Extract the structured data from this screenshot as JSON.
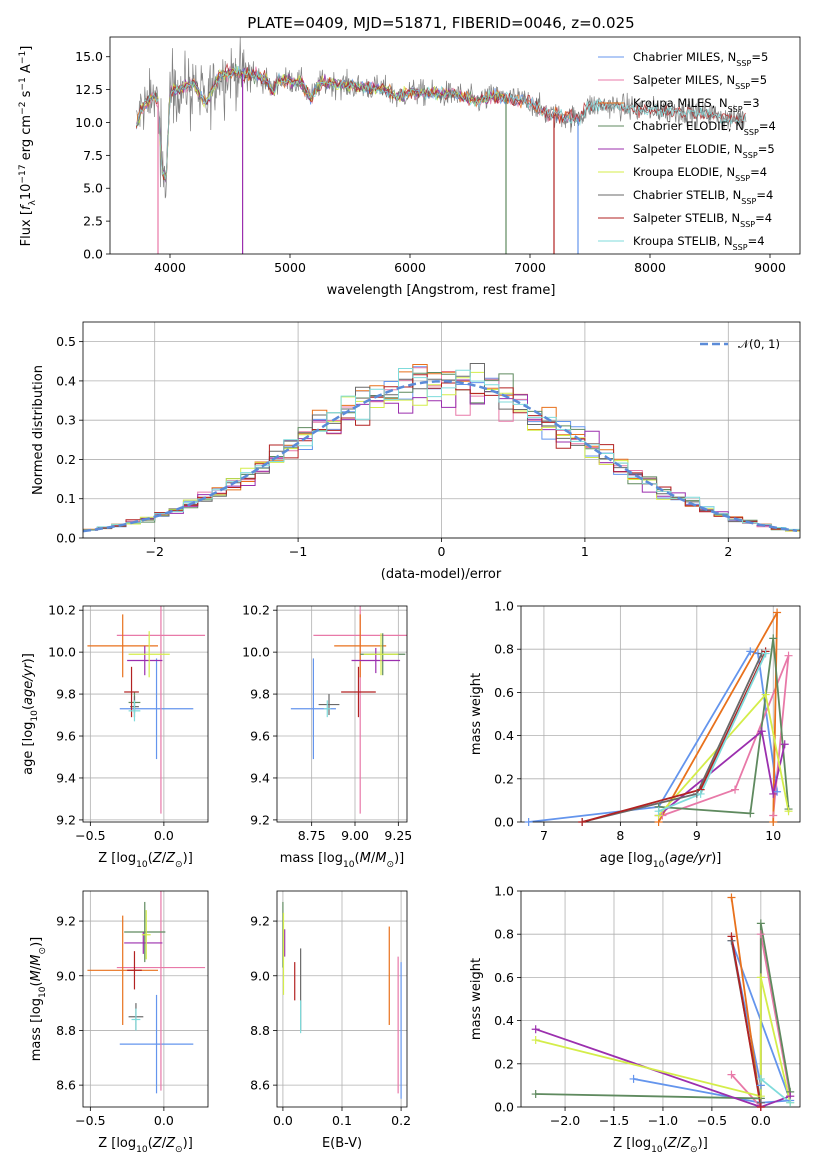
{
  "figure": {
    "title": "PLATE=0409, MJD=51871, FIBERID=0046, z=0.025",
    "colors": [
      "#6495ed",
      "#e879a8",
      "#e8711c",
      "#5f8a5f",
      "#9b2fae",
      "#d4ed4a",
      "#696969",
      "#b22222",
      "#7fdbdb"
    ]
  },
  "chart_data": [
    {
      "id": "spectrum",
      "type": "line",
      "xlabel": "wavelength [Angstrom, rest frame]",
      "ylabel": "Flux [f_λ10^-17 erg cm^-2 s^-1 A^-1]",
      "xlim": [
        3500,
        9250
      ],
      "ylim": [
        0,
        16.5
      ],
      "xticks": [
        4000,
        5000,
        6000,
        7000,
        8000,
        9000
      ],
      "yticks": [
        0.0,
        2.5,
        5.0,
        7.5,
        10.0,
        12.5,
        15.0
      ],
      "grid": false,
      "legend_loc": "upper right",
      "series": [
        {
          "name": "Chabrier MILES, N_SSP=5",
          "end": 7400
        },
        {
          "name": "Salpeter MILES, N_SSP=5",
          "end": 7400
        },
        {
          "name": "Kroupa MILES, N_SSP=3",
          "end": 7400
        },
        {
          "name": "Chabrier ELODIE, N_SSP=4",
          "end": 6800
        },
        {
          "name": "Salpeter ELODIE, N_SSP=5",
          "end": 6800
        },
        {
          "name": "Kroupa ELODIE, N_SSP=4",
          "end": 6800
        },
        {
          "name": "Chabrier STELIB, N_SSP=4",
          "end": 8800
        },
        {
          "name": "Salpeter STELIB, N_SSP=4",
          "end": 8800
        },
        {
          "name": "Kroupa STELIB, N_SSP=4",
          "end": 8800
        }
      ],
      "data_shape": [
        [
          3720,
          9.8
        ],
        [
          3760,
          11.0
        ],
        [
          3800,
          11.5
        ],
        [
          3860,
          12.0
        ],
        [
          3900,
          11.6
        ],
        [
          3933,
          6.5
        ],
        [
          3968,
          5.5
        ],
        [
          4000,
          12.3
        ],
        [
          4100,
          12.7
        ],
        [
          4200,
          13.0
        ],
        [
          4300,
          11.4
        ],
        [
          4400,
          13.5
        ],
        [
          4500,
          13.8
        ],
        [
          4600,
          13.7
        ],
        [
          4700,
          13.6
        ],
        [
          4800,
          13.2
        ],
        [
          4861,
          12.3
        ],
        [
          4900,
          13.3
        ],
        [
          5000,
          13.2
        ],
        [
          5100,
          13.0
        ],
        [
          5175,
          11.8
        ],
        [
          5250,
          13.0
        ],
        [
          5400,
          12.9
        ],
        [
          5600,
          12.7
        ],
        [
          5800,
          12.5
        ],
        [
          5890,
          11.9
        ],
        [
          6000,
          12.3
        ],
        [
          6200,
          12.2
        ],
        [
          6400,
          12.1
        ],
        [
          6563,
          11.6
        ],
        [
          6700,
          12.0
        ],
        [
          6850,
          11.8
        ],
        [
          7000,
          11.6
        ],
        [
          7150,
          10.6
        ],
        [
          7300,
          10.4
        ],
        [
          7400,
          10.3
        ],
        [
          7500,
          11.3
        ],
        [
          7700,
          11.3
        ],
        [
          7900,
          11.0
        ],
        [
          8100,
          10.9
        ],
        [
          8300,
          10.8
        ],
        [
          8500,
          10.7
        ],
        [
          8650,
          10.2
        ],
        [
          8800,
          10.4
        ]
      ],
      "drops": [
        [
          3900,
          1
        ],
        [
          4605,
          4
        ],
        [
          6800,
          3
        ],
        [
          7200,
          7
        ],
        [
          7400,
          0
        ]
      ]
    },
    {
      "id": "residuals",
      "type": "bar",
      "xlabel": "(data-model)/error",
      "ylabel": "Normed distribution",
      "xlim": [
        -2.5,
        2.5
      ],
      "ylim": [
        0,
        0.55
      ],
      "xticks": [
        -2,
        -1,
        0,
        1,
        2
      ],
      "yticks": [
        0.0,
        0.1,
        0.2,
        0.3,
        0.4,
        0.5
      ],
      "grid": true,
      "legend": "N(0, 1)",
      "legend_loc": "upper right"
    },
    {
      "id": "age_vs_Z",
      "type": "scatter",
      "xlabel": "Z [log10(Z/Z⊙)]",
      "ylabel": "age [log10(age/yr)]",
      "xlim": [
        -0.55,
        0.3
      ],
      "ylim": [
        9.19,
        10.22
      ],
      "xticks": [
        -0.5,
        0.0
      ],
      "yticks": [
        9.2,
        9.4,
        9.6,
        9.8,
        10.0,
        10.2
      ],
      "grid": true,
      "points": [
        {
          "x": -0.05,
          "y": 9.73,
          "xerr": 0.25,
          "yerr": 0.24,
          "c": 0
        },
        {
          "x": -0.02,
          "y": 10.08,
          "xerr": 0.3,
          "yerr": 0.85,
          "c": 1
        },
        {
          "x": -0.28,
          "y": 10.03,
          "xerr": 0.24,
          "yerr": 0.15,
          "c": 2
        },
        {
          "x": -0.2,
          "y": 9.76,
          "xerr": 0.04,
          "yerr": 0.05,
          "c": 3
        },
        {
          "x": -0.13,
          "y": 9.96,
          "xerr": 0.12,
          "yerr": 0.07,
          "c": 4
        },
        {
          "x": -0.1,
          "y": 9.99,
          "xerr": 0.14,
          "yerr": 0.11,
          "c": 5
        },
        {
          "x": -0.2,
          "y": 9.74,
          "xerr": 0.03,
          "yerr": 0.05,
          "c": 6
        },
        {
          "x": -0.22,
          "y": 9.81,
          "xerr": 0.05,
          "yerr": 0.12,
          "c": 7
        },
        {
          "x": -0.2,
          "y": 9.72,
          "xerr": 0.04,
          "yerr": 0.05,
          "c": 8
        }
      ]
    },
    {
      "id": "age_vs_mass",
      "type": "scatter",
      "xlabel": "mass [log10(M/M⊙)]",
      "ylabel": "",
      "xlim": [
        8.55,
        9.3
      ],
      "ylim": [
        9.19,
        10.22
      ],
      "xticks": [
        8.75,
        9.0,
        9.25
      ],
      "yticks": [
        9.2,
        9.4,
        9.6,
        9.8,
        10.0,
        10.2
      ],
      "grid": true,
      "points": [
        {
          "x": 8.76,
          "y": 9.73,
          "xerr": 0.13,
          "yerr": 0.24,
          "c": 0
        },
        {
          "x": 9.03,
          "y": 10.08,
          "xerr": 0.27,
          "yerr": 0.85,
          "c": 1
        },
        {
          "x": 9.03,
          "y": 10.03,
          "xerr": 0.15,
          "yerr": 0.15,
          "c": 2
        },
        {
          "x": 9.16,
          "y": 9.99,
          "xerr": 0.13,
          "yerr": 0.1,
          "c": 3
        },
        {
          "x": 9.12,
          "y": 9.96,
          "xerr": 0.14,
          "yerr": 0.06,
          "c": 4
        },
        {
          "x": 9.15,
          "y": 9.99,
          "xerr": 0.1,
          "yerr": 0.1,
          "c": 5
        },
        {
          "x": 8.85,
          "y": 9.75,
          "xerr": 0.06,
          "yerr": 0.05,
          "c": 6
        },
        {
          "x": 9.02,
          "y": 9.81,
          "xerr": 0.1,
          "yerr": 0.12,
          "c": 7
        },
        {
          "x": 8.84,
          "y": 9.73,
          "xerr": 0.02,
          "yerr": 0.04,
          "c": 8
        }
      ]
    },
    {
      "id": "weight_vs_age",
      "type": "line",
      "xlabel": "age [log10(age/yr)]",
      "ylabel": "mass weight",
      "xlim": [
        6.7,
        10.35
      ],
      "ylim": [
        0,
        1.0
      ],
      "xticks": [
        7,
        8,
        9,
        10
      ],
      "yticks": [
        0.0,
        0.2,
        0.4,
        0.6,
        0.8,
        1.0
      ],
      "grid": true,
      "series": [
        {
          "c": 0,
          "points": [
            [
              6.8,
              0.0
            ],
            [
              8.5,
              0.07
            ],
            [
              9.7,
              0.79
            ],
            [
              9.8,
              0.78
            ],
            [
              10.05,
              0.14
            ]
          ]
        },
        {
          "c": 1,
          "points": [
            [
              8.55,
              0.03
            ],
            [
              9.5,
              0.15
            ],
            [
              10.2,
              0.77
            ],
            [
              10.0,
              0.03
            ]
          ]
        },
        {
          "c": 2,
          "points": [
            [
              8.5,
              0.0
            ],
            [
              10.05,
              0.97
            ],
            [
              10.0,
              0.0
            ]
          ]
        },
        {
          "c": 3,
          "points": [
            [
              8.5,
              0.07
            ],
            [
              9.7,
              0.04
            ],
            [
              10.0,
              0.85
            ],
            [
              10.2,
              0.06
            ]
          ]
        },
        {
          "c": 4,
          "points": [
            [
              8.5,
              0.03
            ],
            [
              9.85,
              0.42
            ],
            [
              10.0,
              0.13
            ],
            [
              10.15,
              0.36
            ]
          ]
        },
        {
          "c": 5,
          "points": [
            [
              8.5,
              0.03
            ],
            [
              9.9,
              0.59
            ],
            [
              10.2,
              0.05
            ]
          ]
        },
        {
          "c": 6,
          "points": [
            [
              7.5,
              0.0
            ],
            [
              9.0,
              0.13
            ],
            [
              9.85,
              0.78
            ]
          ]
        },
        {
          "c": 7,
          "points": [
            [
              7.5,
              0.0
            ],
            [
              9.05,
              0.15
            ],
            [
              9.9,
              0.79
            ]
          ]
        },
        {
          "c": 8,
          "points": [
            [
              8.5,
              0.05
            ],
            [
              9.05,
              0.13
            ],
            [
              9.9,
              0.78
            ]
          ]
        }
      ]
    },
    {
      "id": "mass_vs_Z",
      "type": "scatter",
      "xlabel": "Z [log10(Z/Z⊙)]",
      "ylabel": "mass [log10(M/M⊙)]",
      "xlim": [
        -0.55,
        0.3
      ],
      "ylim": [
        8.52,
        9.31
      ],
      "xticks": [
        -0.5,
        0.0
      ],
      "yticks": [
        8.6,
        8.8,
        9.0,
        9.2
      ],
      "grid": true,
      "points": [
        {
          "x": -0.05,
          "y": 8.75,
          "xerr": 0.25,
          "yerr": 0.18,
          "c": 0
        },
        {
          "x": -0.02,
          "y": 9.03,
          "xerr": 0.3,
          "yerr": 0.45,
          "c": 1
        },
        {
          "x": -0.28,
          "y": 9.02,
          "xerr": 0.24,
          "yerr": 0.2,
          "c": 2
        },
        {
          "x": -0.13,
          "y": 9.16,
          "xerr": 0.14,
          "yerr": 0.11,
          "c": 3
        },
        {
          "x": -0.14,
          "y": 9.12,
          "xerr": 0.13,
          "yerr": 0.04,
          "c": 4
        },
        {
          "x": -0.12,
          "y": 9.15,
          "xerr": 0.03,
          "yerr": 0.09,
          "c": 5
        },
        {
          "x": -0.19,
          "y": 8.85,
          "xerr": 0.05,
          "yerr": 0.05,
          "c": 6
        },
        {
          "x": -0.2,
          "y": 9.02,
          "xerr": 0.05,
          "yerr": 0.07,
          "c": 7
        },
        {
          "x": -0.19,
          "y": 8.84,
          "xerr": 0.03,
          "yerr": 0.04,
          "c": 8
        }
      ]
    },
    {
      "id": "mass_vs_ebv",
      "type": "scatter",
      "xlabel": "E(B-V)",
      "ylabel": "",
      "xlim": [
        -0.01,
        0.21
      ],
      "ylim": [
        8.52,
        9.31
      ],
      "xticks": [
        0.0,
        0.1,
        0.2
      ],
      "yticks": [
        8.6,
        8.8,
        9.0,
        9.2
      ],
      "grid": true,
      "points": [
        {
          "x": 0.2,
          "y": 8.8,
          "xerr": 0,
          "yerr": 0.25,
          "c": 0
        },
        {
          "x": 0.195,
          "y": 8.82,
          "xerr": 0,
          "yerr": 0.25,
          "c": 1
        },
        {
          "x": 0.18,
          "y": 9.0,
          "xerr": 0,
          "yerr": 0.18,
          "c": 2
        },
        {
          "x": 0.0,
          "y": 9.15,
          "xerr": 0,
          "yerr": 0.12,
          "c": 3
        },
        {
          "x": 0.003,
          "y": 9.12,
          "xerr": 0,
          "yerr": 0.05,
          "c": 4
        },
        {
          "x": 0.001,
          "y": 9.08,
          "xerr": 0,
          "yerr": 0.15,
          "c": 5
        },
        {
          "x": 0.03,
          "y": 8.95,
          "xerr": 0,
          "yerr": 0.15,
          "c": 6
        },
        {
          "x": 0.02,
          "y": 8.98,
          "xerr": 0,
          "yerr": 0.07,
          "c": 7
        },
        {
          "x": 0.03,
          "y": 8.85,
          "xerr": 0,
          "yerr": 0.06,
          "c": 8
        }
      ]
    },
    {
      "id": "weight_vs_Z",
      "type": "line",
      "xlabel": "Z [log10(Z/Z⊙)]",
      "ylabel": "mass weight",
      "xlim": [
        -2.45,
        0.4
      ],
      "ylim": [
        0,
        1.0
      ],
      "xticks": [
        -2.0,
        -1.5,
        -1.0,
        -0.5,
        0.0
      ],
      "yticks": [
        0.0,
        0.2,
        0.4,
        0.6,
        0.8,
        1.0
      ],
      "grid": true,
      "series": [
        {
          "c": 0,
          "points": [
            [
              -1.3,
              0.13
            ],
            [
              0.0,
              0.02
            ],
            [
              0.3,
              0.03
            ],
            [
              -0.3,
              0.77
            ],
            [
              0.0,
              0.1
            ]
          ]
        },
        {
          "c": 1,
          "points": [
            [
              -0.3,
              0.15
            ],
            [
              0.0,
              0.0
            ],
            [
              0.0,
              0.8
            ],
            [
              0.3,
              0.05
            ]
          ]
        },
        {
          "c": 2,
          "points": [
            [
              -0.3,
              0.97
            ],
            [
              0.0,
              0.0
            ]
          ]
        },
        {
          "c": 3,
          "points": [
            [
              -2.3,
              0.06
            ],
            [
              0.0,
              0.04
            ],
            [
              0.0,
              0.85
            ],
            [
              0.3,
              0.07
            ]
          ]
        },
        {
          "c": 4,
          "points": [
            [
              -2.3,
              0.36
            ],
            [
              0.0,
              0.0
            ],
            [
              0.3,
              0.05
            ]
          ]
        },
        {
          "c": 5,
          "points": [
            [
              -2.3,
              0.31
            ],
            [
              0.0,
              0.05
            ],
            [
              0.0,
              0.6
            ],
            [
              0.3,
              0.02
            ]
          ]
        },
        {
          "c": 6,
          "points": [
            [
              -0.3,
              0.77
            ],
            [
              0.0,
              0.02
            ]
          ]
        },
        {
          "c": 7,
          "points": [
            [
              -0.3,
              0.79
            ],
            [
              0.0,
              0.0
            ]
          ]
        },
        {
          "c": 8,
          "points": [
            [
              0.0,
              0.13
            ],
            [
              0.3,
              0.02
            ]
          ]
        }
      ]
    }
  ]
}
